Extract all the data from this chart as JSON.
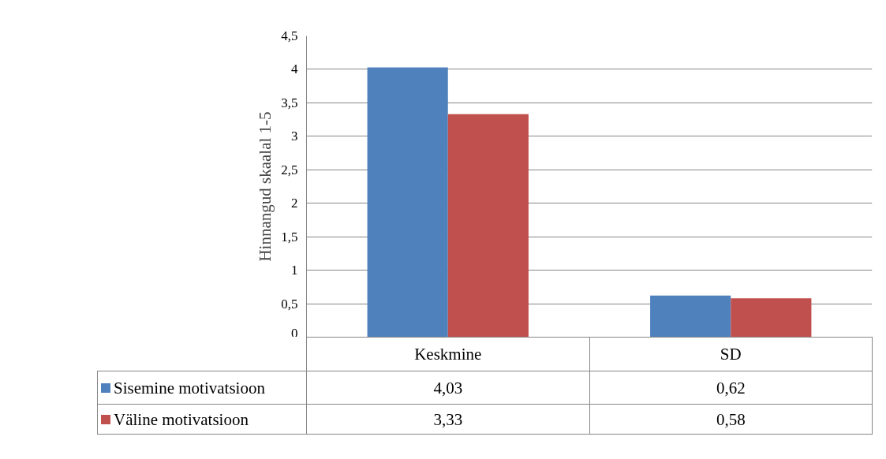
{
  "chart_data": {
    "type": "bar",
    "ylabel": "Hinnangud skaalal 1-5",
    "categories": [
      "Keskmine",
      "SD"
    ],
    "series": [
      {
        "name": "Sisemine motivatsioon",
        "color": "#4f81bd",
        "values": [
          4.03,
          0.62
        ],
        "value_labels": [
          "4,03",
          "0,62"
        ]
      },
      {
        "name": "Väline motivatsioon",
        "color": "#c0504d",
        "values": [
          3.33,
          0.58
        ],
        "value_labels": [
          "3,33",
          "0,58"
        ]
      }
    ],
    "ylim": [
      0,
      4.5
    ],
    "yticks": [
      {
        "value": 0,
        "label": "0"
      },
      {
        "value": 0.5,
        "label": "0,5"
      },
      {
        "value": 1,
        "label": "1"
      },
      {
        "value": 1.5,
        "label": "1,5"
      },
      {
        "value": 2,
        "label": "2"
      },
      {
        "value": 2.5,
        "label": "2,5"
      },
      {
        "value": 3,
        "label": "3"
      },
      {
        "value": 3.5,
        "label": "3,5"
      },
      {
        "value": 4,
        "label": "4"
      },
      {
        "value": 4.5,
        "label": "4,5"
      }
    ],
    "grid": "y",
    "legend": "bottom"
  }
}
